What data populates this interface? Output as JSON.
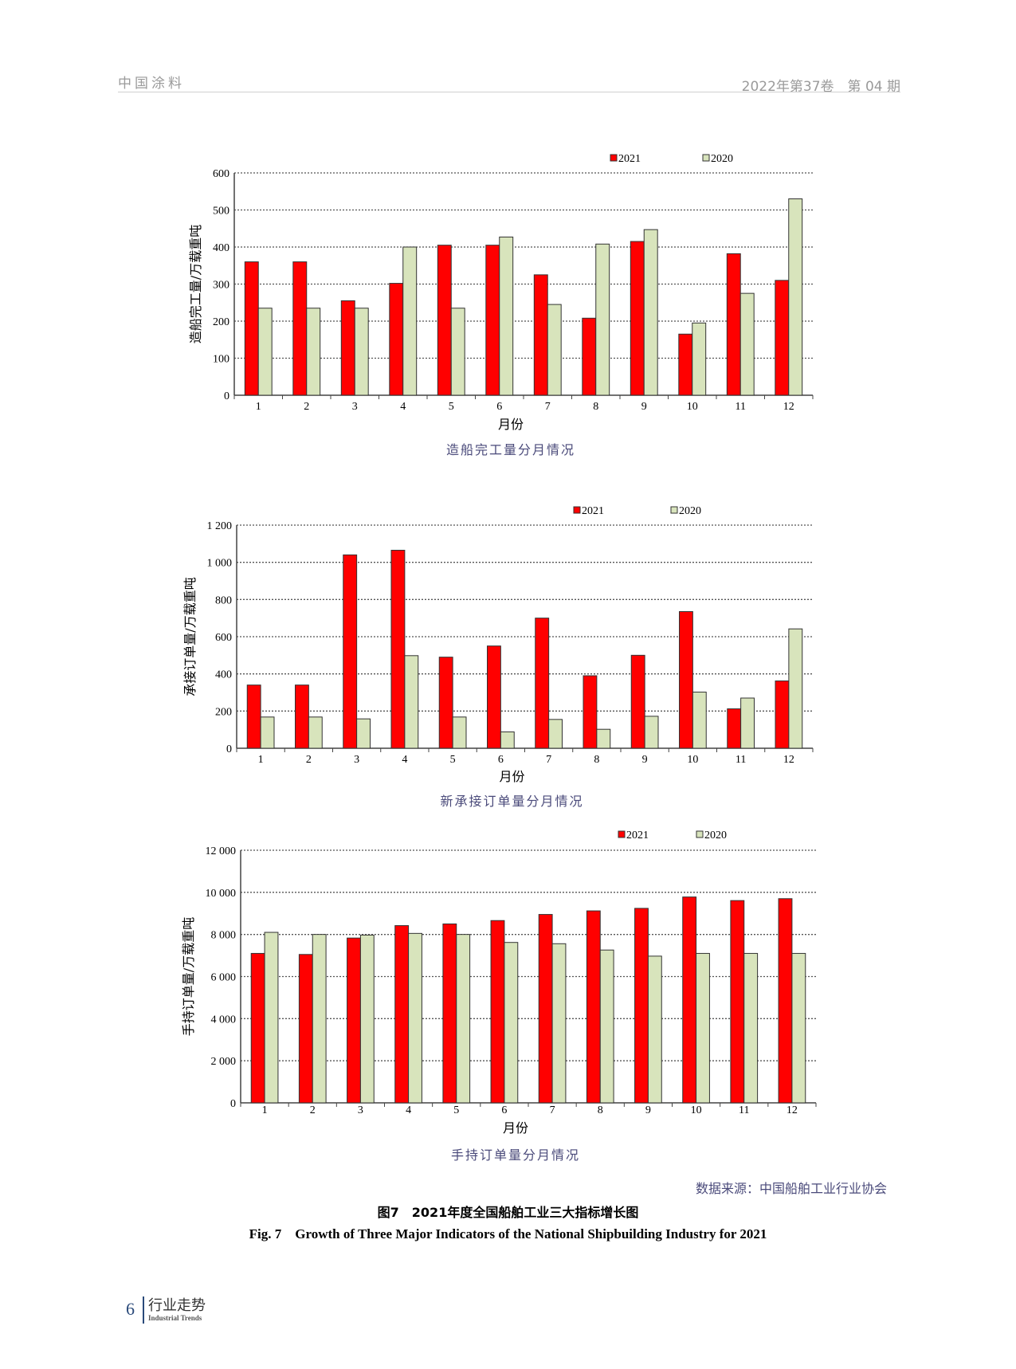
{
  "header": {
    "journal": "中国涂料",
    "issue": "2022年第37卷　第 04 期"
  },
  "chart_data": [
    {
      "type": "bar",
      "title": "造船完工量分月情况",
      "xlabel": "月份",
      "ylabel": "造船完工量/万载重吨",
      "categories": [
        "1",
        "2",
        "3",
        "4",
        "5",
        "6",
        "7",
        "8",
        "9",
        "10",
        "11",
        "12"
      ],
      "ylim": [
        0,
        600
      ],
      "yticks": [
        0,
        100,
        200,
        300,
        400,
        500,
        600
      ],
      "ytick_labels": [
        "0",
        "100",
        "200",
        "300",
        "400",
        "500",
        "600"
      ],
      "grid": true,
      "legend": "top-right",
      "series": [
        {
          "name": "2021",
          "color": "#ff0000",
          "values": [
            360,
            360,
            255,
            302,
            405,
            405,
            325,
            208,
            415,
            165,
            382,
            310
          ]
        },
        {
          "name": "2020",
          "color": "#d8e4bc",
          "values": [
            235,
            235,
            235,
            400,
            235,
            427,
            245,
            408,
            447,
            195,
            275,
            530
          ]
        }
      ]
    },
    {
      "type": "bar",
      "title": "新承接订单量分月情况",
      "xlabel": "月份",
      "ylabel": "承接订单量/万载重吨",
      "categories": [
        "1",
        "2",
        "3",
        "4",
        "5",
        "6",
        "7",
        "8",
        "9",
        "10",
        "11",
        "12"
      ],
      "ylim": [
        0,
        1200
      ],
      "yticks": [
        0,
        200,
        400,
        600,
        800,
        1000,
        1200
      ],
      "ytick_labels": [
        "0",
        "200",
        "400",
        "600",
        "800",
        "1 000",
        "1 200"
      ],
      "grid": true,
      "legend": "top-right",
      "series": [
        {
          "name": "2021",
          "color": "#ff0000",
          "values": [
            340,
            340,
            1040,
            1065,
            490,
            550,
            700,
            390,
            500,
            735,
            212,
            362
          ]
        },
        {
          "name": "2020",
          "color": "#d8e4bc",
          "values": [
            168,
            168,
            158,
            498,
            168,
            88,
            155,
            102,
            172,
            302,
            270,
            642
          ]
        }
      ]
    },
    {
      "type": "bar",
      "title": "手持订单量分月情况",
      "xlabel": "月份",
      "ylabel": "手持订单量/万载重吨",
      "categories": [
        "1",
        "2",
        "3",
        "4",
        "5",
        "6",
        "7",
        "8",
        "9",
        "10",
        "11",
        "12"
      ],
      "ylim": [
        0,
        12000
      ],
      "yticks": [
        0,
        2000,
        4000,
        6000,
        8000,
        10000,
        12000
      ],
      "ytick_labels": [
        "0",
        "2 000",
        "4 000",
        "6 000",
        "8 000",
        "10 000",
        "12 000"
      ],
      "grid": true,
      "legend": "top-right",
      "series": [
        {
          "name": "2021",
          "color": "#ff0000",
          "values": [
            7100,
            7050,
            7830,
            8420,
            8500,
            8660,
            8950,
            9120,
            9240,
            9780,
            9610,
            9700
          ]
        },
        {
          "name": "2020",
          "color": "#d8e4bc",
          "values": [
            8100,
            8000,
            7970,
            8050,
            8000,
            7620,
            7560,
            7260,
            6970,
            7100,
            7100,
            7100
          ]
        }
      ]
    }
  ],
  "source": "数据来源：中国船舶工业行业协会",
  "figure": {
    "caption_cn": "图7　2021年度全国船舶工业三大指标增长图",
    "caption_en": "Fig. 7　Growth of Three Major Indicators of the National Shipbuilding Industry for 2021"
  },
  "footer": {
    "page": "6",
    "section_cn": "行业走势",
    "section_en": "Industrial Trends"
  }
}
